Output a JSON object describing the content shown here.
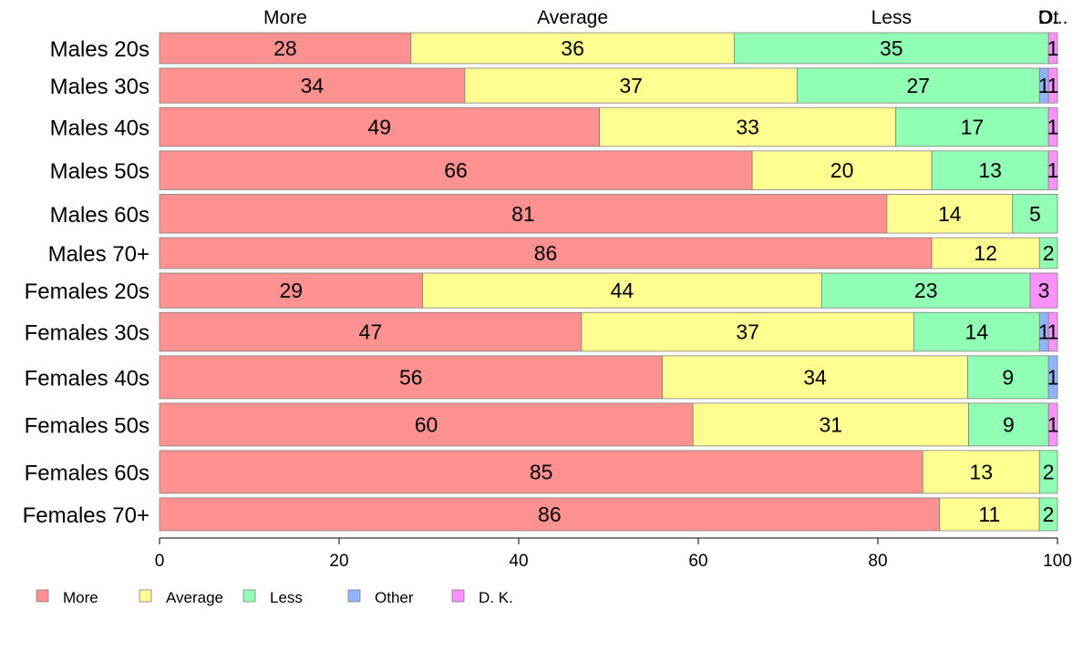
{
  "chart_data": {
    "type": "bar",
    "orientation": "horizontal",
    "stacked": true,
    "percent_stacked": true,
    "categories": [
      "Males 20s",
      "Males 30s",
      "Males 40s",
      "Males 50s",
      "Males 60s",
      "Males 70+",
      "Females 20s",
      "Females 30s",
      "Females 40s",
      "Females 50s",
      "Females 60s",
      "Females 70+"
    ],
    "series": [
      {
        "name": "More",
        "color": "#FF9191",
        "values": [
          28,
          34,
          49,
          66,
          81,
          86,
          29,
          47,
          56,
          60,
          85,
          86
        ]
      },
      {
        "name": "Average",
        "color": "#FFFF91",
        "values": [
          36,
          37,
          33,
          20,
          14,
          12,
          44,
          37,
          34,
          31,
          13,
          11
        ]
      },
      {
        "name": "Less",
        "color": "#91FFB4",
        "values": [
          35,
          27,
          17,
          13,
          5,
          2,
          23,
          14,
          9,
          9,
          2,
          2
        ]
      },
      {
        "name": "Other",
        "color": "#91B4FF",
        "values": [
          0,
          1,
          0,
          0,
          0,
          0,
          0,
          1,
          1,
          0,
          0,
          0
        ]
      },
      {
        "name": "D. K.",
        "color": "#FF91FF",
        "values": [
          1,
          1,
          1,
          1,
          0,
          0,
          3,
          1,
          0,
          1,
          0,
          0
        ]
      }
    ],
    "bar_weights": [
      31,
      35,
      39,
      39,
      39,
      31,
      35,
      39,
      43,
      43,
      43,
      33
    ],
    "top_labels": [
      "More",
      "Average",
      "Less",
      "Ot",
      "D..."
    ],
    "xaxis": {
      "ticks": [
        "0",
        "20",
        "40",
        "60",
        "80",
        "100"
      ],
      "range": [
        0,
        100
      ]
    },
    "xlabel": "",
    "ylabel": "",
    "title": "",
    "legend": {
      "position": "bottom-left",
      "entries": [
        "More",
        "Average",
        "Less",
        "Other",
        "D. K."
      ]
    },
    "grid": false
  }
}
